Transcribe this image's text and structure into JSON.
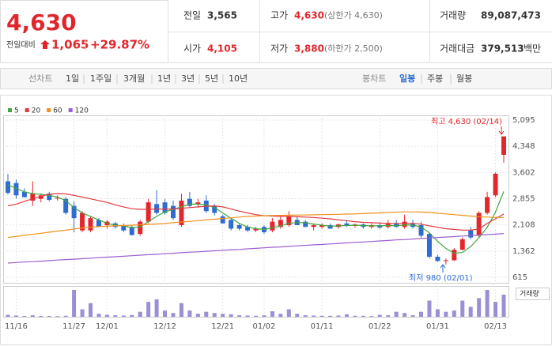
{
  "header": {
    "price": "4,630",
    "change_label": "전일대비",
    "change": "1,065",
    "change_rate": "+29.87%",
    "stats": [
      [
        {
          "label": "전일",
          "value": "3,565"
        },
        {
          "label": "고가",
          "value": "4,630",
          "note": "(상한가 4,630)"
        },
        {
          "label": "거래량",
          "value": "89,087,473"
        }
      ],
      [
        {
          "label": "시가",
          "value": "4,105"
        },
        {
          "label": "저가",
          "value": "3,880",
          "note": "(하한가 2,500)"
        },
        {
          "label": "거래대금",
          "value": "379,513",
          "unit": "백만"
        }
      ]
    ]
  },
  "toolbar": {
    "line_chart": "선차트",
    "periods": [
      "1일",
      "1주일",
      "3개월",
      "1년",
      "3년",
      "5년",
      "10년"
    ],
    "candle_chart": "봉차트",
    "candle_periods": [
      "일봉",
      "주봉",
      "월봉"
    ]
  },
  "chart_data": {
    "type": "candlestick",
    "categories": [
      null,
      "11/16",
      null,
      null,
      null,
      null,
      null,
      null,
      "11/27",
      null,
      null,
      null,
      "12/01",
      null,
      null,
      null,
      null,
      null,
      null,
      "12/12",
      null,
      null,
      null,
      null,
      null,
      null,
      "12/21",
      null,
      null,
      null,
      null,
      "01/02",
      null,
      null,
      null,
      null,
      null,
      null,
      "01/11",
      null,
      null,
      null,
      null,
      null,
      null,
      "01/22",
      null,
      null,
      null,
      null,
      null,
      null,
      "01/31",
      null,
      null,
      null,
      null,
      null,
      null,
      "02/13",
      null
    ],
    "open": [
      3350,
      3300,
      3050,
      2800,
      2850,
      3000,
      2860,
      2850,
      2650,
      1950,
      1950,
      2250,
      2100,
      2150,
      2100,
      2050,
      1850,
      2200,
      2700,
      2750,
      2650,
      2100,
      2850,
      2700,
      2800,
      2650,
      2350,
      2250,
      2100,
      2050,
      1950,
      2050,
      1950,
      2050,
      2100,
      2250,
      2200,
      2050,
      2050,
      2100,
      2050,
      2150,
      2080,
      2120,
      2050,
      2100,
      2050,
      2150,
      2050,
      2150,
      2100,
      1850,
      1200,
      1080,
      1100,
      1400,
      1950,
      1800,
      2450,
      2950,
      4105
    ],
    "high": [
      3560,
      3400,
      3150,
      3350,
      3000,
      3050,
      2950,
      2900,
      2780,
      2500,
      2350,
      2300,
      2250,
      2200,
      2150,
      2100,
      2250,
      2850,
      3100,
      2850,
      2800,
      3000,
      3050,
      2850,
      2950,
      2700,
      2400,
      2300,
      2150,
      2100,
      2050,
      2100,
      2300,
      2350,
      2500,
      2350,
      2250,
      2150,
      2150,
      2150,
      2150,
      2250,
      2150,
      2150,
      2150,
      2180,
      2250,
      2250,
      2400,
      2250,
      2200,
      1900,
      1250,
      1150,
      1450,
      1750,
      2050,
      2500,
      3050,
      3600,
      4630
    ],
    "low": [
      2980,
      2850,
      2880,
      2650,
      2750,
      2780,
      2800,
      2400,
      1900,
      1900,
      1900,
      2050,
      2000,
      2000,
      1900,
      1800,
      1800,
      2150,
      2400,
      2400,
      2250,
      2050,
      2600,
      2600,
      2450,
      2380,
      2150,
      1950,
      1950,
      1900,
      1900,
      1850,
      1900,
      2000,
      2050,
      2100,
      2050,
      1950,
      2000,
      2000,
      2000,
      2050,
      2030,
      2000,
      2000,
      2000,
      2000,
      2030,
      2000,
      2000,
      1750,
      1150,
      1050,
      980,
      1080,
      1380,
      1700,
      1750,
      2400,
      2900,
      3880
    ],
    "close": [
      3020,
      2950,
      2900,
      3000,
      2950,
      2820,
      2880,
      2450,
      2300,
      2450,
      2300,
      2050,
      2200,
      2050,
      1950,
      1820,
      2200,
      2750,
      2450,
      2450,
      2300,
      2800,
      2650,
      2750,
      2500,
      2450,
      2150,
      2000,
      2000,
      1950,
      2000,
      1900,
      2200,
      2250,
      2350,
      2100,
      2050,
      2100,
      2100,
      2000,
      2120,
      2080,
      2120,
      2050,
      2100,
      2030,
      2150,
      2050,
      2200,
      2050,
      1800,
      1200,
      1080,
      1100,
      1400,
      1700,
      1750,
      2450,
      2900,
      3565,
      4630
    ],
    "up_color": "#e3262b",
    "down_color": "#2f6cd1",
    "volume": [
      8000000,
      5000000,
      3000000,
      6000000,
      3000000,
      3000000,
      2500000,
      4000000,
      108000000,
      30000000,
      55000000,
      12000000,
      8000000,
      6000000,
      5000000,
      7000000,
      20000000,
      60000000,
      70000000,
      25000000,
      15000000,
      55000000,
      25000000,
      12000000,
      20000000,
      15000000,
      12000000,
      10000000,
      6000000,
      5000000,
      4000000,
      6000000,
      22000000,
      12000000,
      30000000,
      12000000,
      6000000,
      5000000,
      4000000,
      4000000,
      5000000,
      10000000,
      4000000,
      4000000,
      3000000,
      8000000,
      6000000,
      20000000,
      15000000,
      6000000,
      20000000,
      65000000,
      30000000,
      20000000,
      25000000,
      65000000,
      40000000,
      75000000,
      108000000,
      60000000,
      89087473
    ],
    "volume_label": "거래량",
    "volume_color": "#9a8fd3",
    "series": [
      {
        "name": "5",
        "color": "#41a63f",
        "values": [
          3250,
          3150,
          3050,
          3000,
          2980,
          2950,
          2900,
          2800,
          2600,
          2450,
          2350,
          2250,
          2150,
          2100,
          2080,
          2030,
          2050,
          2200,
          2350,
          2480,
          2550,
          2620,
          2700,
          2700,
          2680,
          2600,
          2450,
          2300,
          2150,
          2050,
          2000,
          1980,
          2020,
          2080,
          2150,
          2170,
          2170,
          2130,
          2100,
          2070,
          2080,
          2090,
          2100,
          2090,
          2080,
          2080,
          2090,
          2080,
          2110,
          2100,
          2050,
          1880,
          1640,
          1440,
          1300,
          1320,
          1490,
          1740,
          2040,
          2470,
          3060
        ]
      },
      {
        "name": "20",
        "color": "#e0393e",
        "values": [
          2650,
          2700,
          2780,
          2850,
          2920,
          2980,
          3000,
          2990,
          2950,
          2900,
          2850,
          2800,
          2750,
          2680,
          2620,
          2570,
          2550,
          2550,
          2560,
          2560,
          2560,
          2580,
          2600,
          2620,
          2640,
          2650,
          2620,
          2560,
          2500,
          2450,
          2400,
          2370,
          2360,
          2350,
          2350,
          2340,
          2330,
          2320,
          2300,
          2280,
          2250,
          2230,
          2200,
          2180,
          2170,
          2160,
          2150,
          2150,
          2150,
          2150,
          2130,
          2080,
          2040,
          2000,
          1980,
          1960,
          1960,
          1990,
          2150,
          2280,
          2420
        ]
      },
      {
        "name": "60",
        "color": "#f0901e",
        "values": [
          1750,
          1780,
          1810,
          1840,
          1870,
          1900,
          1930,
          1960,
          1990,
          2020,
          2040,
          2060,
          2070,
          2080,
          2090,
          2100,
          2110,
          2120,
          2135,
          2150,
          2170,
          2190,
          2210,
          2230,
          2250,
          2270,
          2290,
          2310,
          2330,
          2350,
          2360,
          2370,
          2375,
          2380,
          2385,
          2390,
          2390,
          2395,
          2400,
          2405,
          2410,
          2415,
          2420,
          2430,
          2440,
          2450,
          2460,
          2470,
          2480,
          2480,
          2475,
          2460,
          2440,
          2420,
          2400,
          2380,
          2360,
          2340,
          2330,
          2320,
          2320
        ]
      },
      {
        "name": "120",
        "color": "#9d5fd1",
        "values": [
          1020,
          1035,
          1050,
          1060,
          1075,
          1090,
          1105,
          1120,
          1130,
          1145,
          1160,
          1175,
          1190,
          1200,
          1215,
          1230,
          1245,
          1260,
          1270,
          1285,
          1300,
          1315,
          1330,
          1340,
          1355,
          1370,
          1385,
          1400,
          1410,
          1425,
          1440,
          1455,
          1470,
          1480,
          1495,
          1510,
          1525,
          1540,
          1550,
          1565,
          1580,
          1595,
          1610,
          1620,
          1635,
          1650,
          1665,
          1680,
          1690,
          1705,
          1720,
          1735,
          1750,
          1760,
          1775,
          1790,
          1805,
          1820,
          1830,
          1845,
          1860
        ]
      }
    ],
    "ylim": [
      457.5,
      5230
    ],
    "yticks": [
      {
        "value": 5095,
        "label": "5,095"
      },
      {
        "value": 4348,
        "label": "4,348"
      },
      {
        "value": 3602,
        "label": "3,602"
      },
      {
        "value": 2855,
        "label": "2,855"
      },
      {
        "value": 2108,
        "label": "2,108"
      },
      {
        "value": 1362,
        "label": "1,362"
      },
      615
    ],
    "grid": true,
    "annotations": [
      {
        "text": "최고 4,630 (02/14)"
      },
      {
        "text": "최저 980 (02/01)"
      }
    ]
  }
}
